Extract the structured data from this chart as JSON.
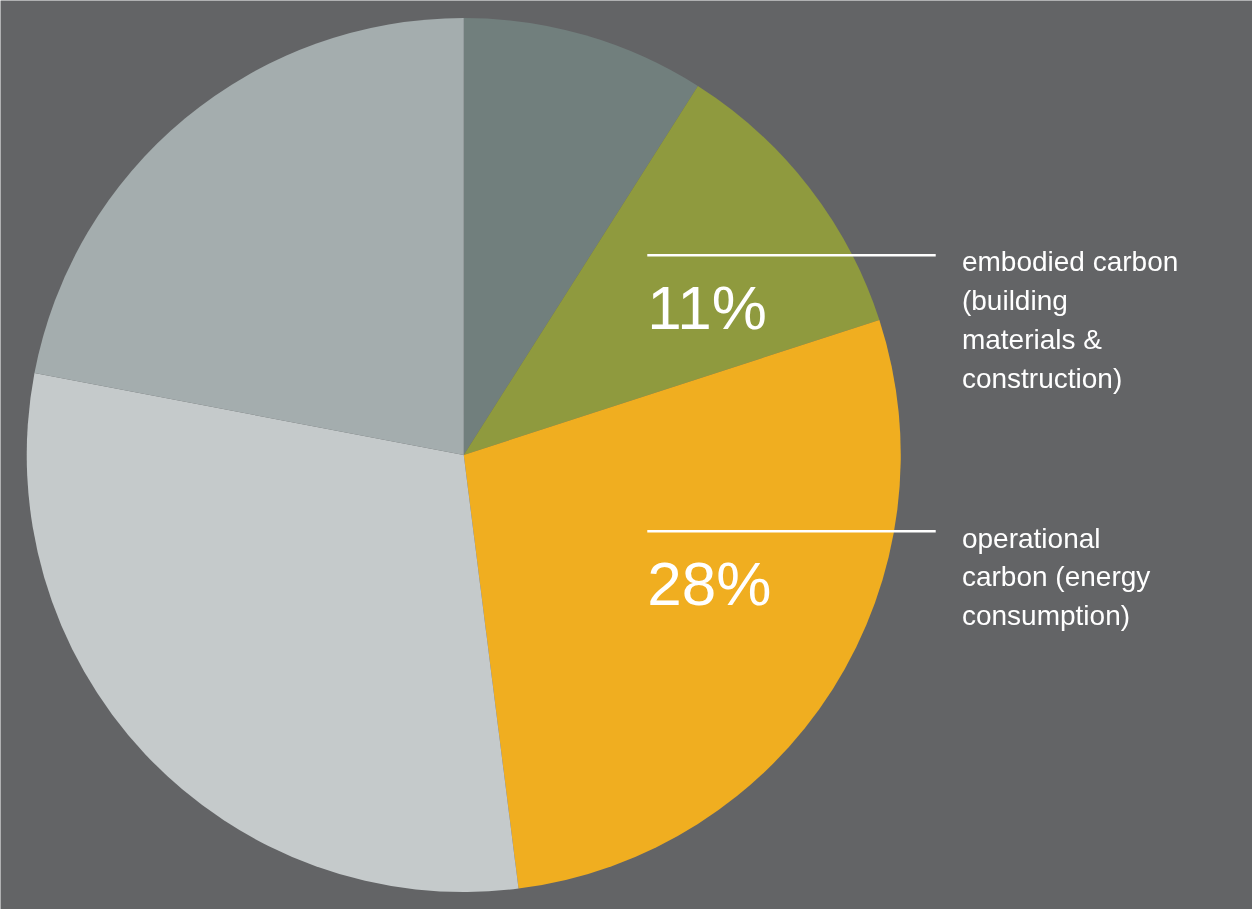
{
  "chart_data": {
    "type": "pie",
    "categories": [
      null,
      "embodied carbon (building materials & construction)",
      "operational carbon (energy consumption)",
      null,
      null
    ],
    "values": [
      9,
      11,
      28,
      30,
      22
    ],
    "colors": [
      "#717f7d",
      "#8f9a3e",
      "#f0ae20",
      "#c5cacb",
      "#a4adae"
    ],
    "value_labels": [
      null,
      "11%",
      "28%",
      null,
      null
    ]
  }
}
